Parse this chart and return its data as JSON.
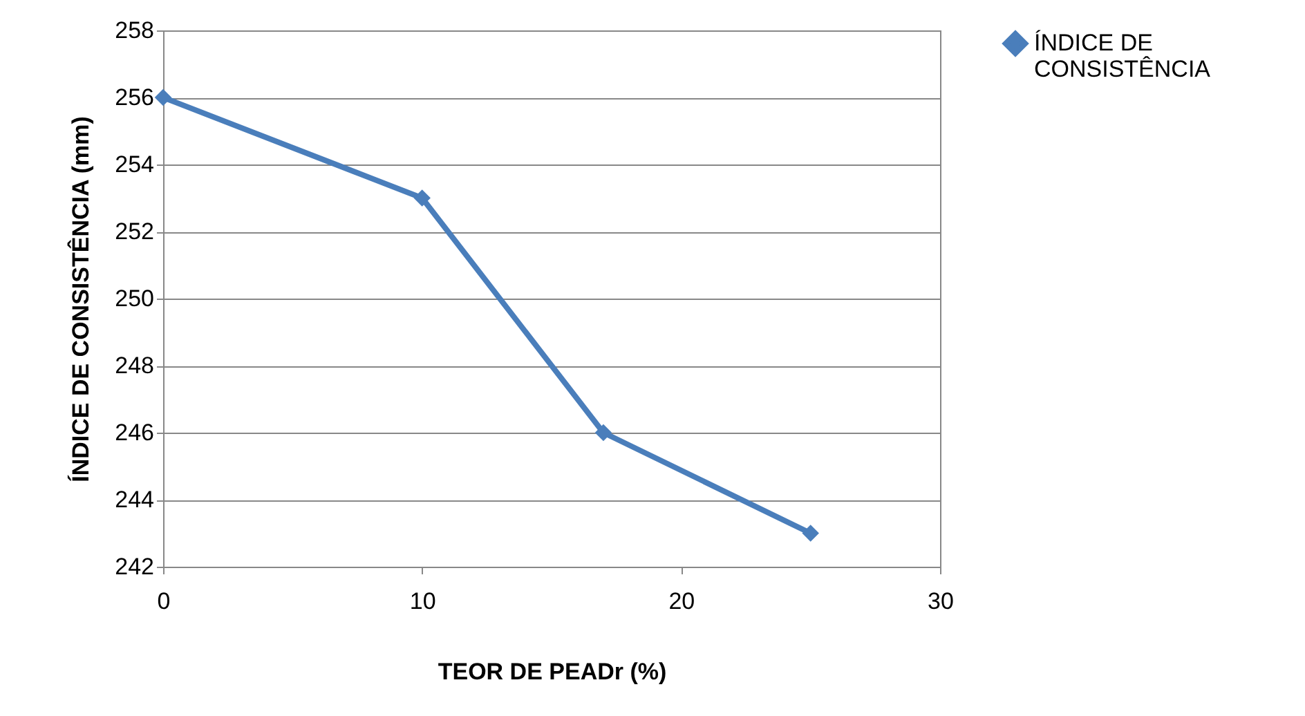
{
  "chart_data": {
    "type": "line",
    "xlabel": "TEOR DE PEADr (%)",
    "ylabel": "ÍNDICE DE CONSISTÊNCIA (mm)",
    "x": [
      0,
      10,
      17,
      25
    ],
    "series": [
      {
        "name": "ÍNDICE DE CONSISTÊNCIA",
        "color": "#4a7ebb",
        "values": [
          256,
          253,
          246,
          243
        ]
      }
    ],
    "xlim": [
      0,
      30
    ],
    "xticks": [
      0,
      10,
      20,
      30
    ],
    "ylim": [
      242,
      258
    ],
    "yticks": [
      242,
      244,
      246,
      248,
      250,
      252,
      254,
      256,
      258
    ],
    "grid": "y",
    "legend": "top right",
    "marker": "diamond",
    "line_style": "solid"
  }
}
